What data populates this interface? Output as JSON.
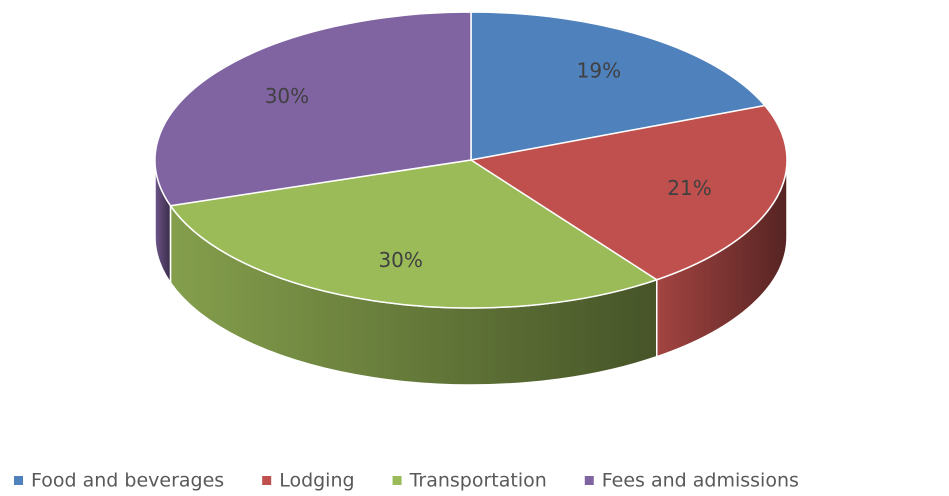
{
  "chart_data": {
    "type": "pie",
    "three_d": true,
    "categories": [
      "Food and beverages",
      "Lodging",
      "Transportation",
      "Fees and admissions"
    ],
    "values": [
      19,
      21,
      30,
      30
    ],
    "value_labels": [
      "19%",
      "21%",
      "30%",
      "30%"
    ],
    "colors": [
      "#4f81bd",
      "#c0504d",
      "#9bbb59",
      "#8064a2"
    ],
    "legend": "bottom"
  }
}
